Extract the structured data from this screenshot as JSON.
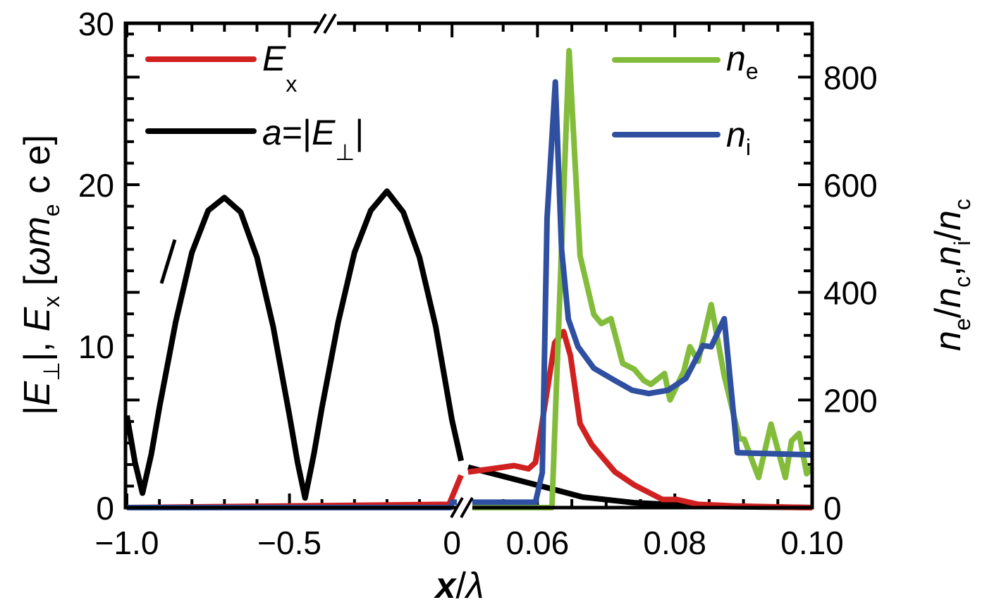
{
  "chart_data": {
    "type": "line",
    "xlabel": {
      "var": "x",
      "slash": "/",
      "lambda": "λ"
    },
    "ylabel_left": {
      "bar1": "|",
      "E": "E",
      "perp": "⊥",
      "bar2": "|, ",
      "E2": "E",
      "x": "x",
      "open": " [",
      "omega": "ω",
      "m": "m",
      "e": "e",
      "rest": " c e]"
    },
    "ylabel_right": {
      "n1": "n",
      "e": "e",
      "s1": "/",
      "n2": "n",
      "c1": "c",
      "comma": ",",
      "n3": "n",
      "i": "i",
      "s2": "/",
      "n4": "n",
      "c2": "c"
    },
    "x_axis": {
      "broken": true,
      "left_segment": [
        -1.0,
        0.03
      ],
      "right_segment": [
        0.05,
        0.1
      ],
      "tick_labels": [
        {
          "value": -1.0,
          "label": "−1.0"
        },
        {
          "value": -0.5,
          "label": "−0.5"
        },
        {
          "value": 0,
          "label": "0"
        },
        {
          "value": 0.06,
          "label": "0.06"
        },
        {
          "value": 0.08,
          "label": "0.08"
        },
        {
          "value": 0.1,
          "label": "0.10"
        }
      ]
    },
    "y_left": {
      "ylim": [
        0,
        30
      ],
      "tick_labels": [
        {
          "value": 0,
          "label": "0"
        },
        {
          "value": 10,
          "label": "10"
        },
        {
          "value": 20,
          "label": "20"
        },
        {
          "value": 30,
          "label": "30"
        }
      ]
    },
    "y_right": {
      "ylim": [
        0,
        900
      ],
      "tick_labels": [
        {
          "value": 0,
          "label": "0"
        },
        {
          "value": 200,
          "label": "200"
        },
        {
          "value": 400,
          "label": "400"
        },
        {
          "value": 600,
          "label": "600"
        },
        {
          "value": 800,
          "label": "800"
        }
      ]
    },
    "legend": [
      {
        "series": "Ex",
        "main": "E",
        "sub": "x",
        "placement": "top-left"
      },
      {
        "series": "a",
        "pre": "a",
        "mid": "=|",
        "main": "E",
        "sub": "⊥",
        "post": "|",
        "placement": "top-left"
      },
      {
        "series": "ne",
        "main": "n",
        "sub": "e",
        "placement": "top-right"
      },
      {
        "series": "ni",
        "main": "n",
        "sub": "i",
        "placement": "top-right"
      }
    ],
    "series": [
      {
        "name": "a",
        "axis": "left",
        "color": "#000000",
        "points": [
          [
            -1.0,
            5.7
          ],
          [
            -0.975,
            2.8
          ],
          [
            -0.952,
            0.9
          ],
          [
            -0.925,
            3.3
          ],
          [
            -0.9,
            6.2
          ],
          [
            -0.85,
            11.5
          ],
          [
            -0.8,
            15.8
          ],
          [
            -0.75,
            18.4
          ],
          [
            -0.7,
            19.2
          ],
          [
            -0.65,
            18.3
          ],
          [
            -0.6,
            15.5
          ],
          [
            -0.55,
            11.2
          ],
          [
            -0.5,
            5.7
          ],
          [
            -0.475,
            2.8
          ],
          [
            -0.452,
            0.6
          ],
          [
            -0.425,
            3.3
          ],
          [
            -0.4,
            6.2
          ],
          [
            -0.35,
            11.5
          ],
          [
            -0.3,
            15.8
          ],
          [
            -0.25,
            18.4
          ],
          [
            -0.2,
            19.6
          ],
          [
            -0.15,
            18.3
          ],
          [
            -0.1,
            15.5
          ],
          [
            -0.05,
            11.2
          ],
          [
            0.0,
            5.4
          ],
          [
            0.028,
            2.9
          ],
          [
            0.0499,
            2.5
          ],
          [
            0.0617,
            1.2
          ],
          [
            0.0666,
            0.65
          ],
          [
            0.0741,
            0.3
          ],
          [
            0.085,
            0.08
          ],
          [
            0.1,
            0.0
          ]
        ]
      },
      {
        "name": "Ex",
        "axis": "left",
        "color": "#d0201f",
        "points": [
          [
            -1.0,
            0
          ],
          [
            -0.009,
            0.2
          ],
          [
            0.028,
            2.0
          ],
          [
            0.0499,
            2.2
          ],
          [
            0.0566,
            2.6
          ],
          [
            0.0587,
            2.4
          ],
          [
            0.0597,
            2.8
          ],
          [
            0.0605,
            4.8
          ],
          [
            0.0625,
            10.2
          ],
          [
            0.0638,
            10.9
          ],
          [
            0.0648,
            9.4
          ],
          [
            0.0662,
            5.2
          ],
          [
            0.0679,
            3.9
          ],
          [
            0.0713,
            2.2
          ],
          [
            0.0741,
            1.4
          ],
          [
            0.0782,
            0.5
          ],
          [
            0.0803,
            0.5
          ],
          [
            0.0834,
            0.2
          ],
          [
            0.0886,
            0.1
          ],
          [
            0.1,
            0.0
          ]
        ]
      },
      {
        "name": "ne",
        "axis": "right",
        "color": "#82bc3a",
        "points": [
          [
            0.0499,
            0
          ],
          [
            0.0621,
            0
          ],
          [
            0.0635,
            481
          ],
          [
            0.0646,
            849
          ],
          [
            0.0662,
            468
          ],
          [
            0.0682,
            359
          ],
          [
            0.0693,
            342
          ],
          [
            0.0707,
            351
          ],
          [
            0.0724,
            268
          ],
          [
            0.0741,
            257
          ],
          [
            0.0755,
            236
          ],
          [
            0.0765,
            229
          ],
          [
            0.0785,
            249
          ],
          [
            0.0793,
            200
          ],
          [
            0.0813,
            253
          ],
          [
            0.0822,
            299
          ],
          [
            0.0834,
            272
          ],
          [
            0.0853,
            377
          ],
          [
            0.0872,
            245
          ],
          [
            0.0894,
            128
          ],
          [
            0.0901,
            127
          ],
          [
            0.0922,
            56
          ],
          [
            0.094,
            155
          ],
          [
            0.0961,
            56
          ],
          [
            0.097,
            124
          ],
          [
            0.0981,
            138
          ],
          [
            0.0992,
            63
          ],
          [
            0.1,
            76
          ]
        ]
      },
      {
        "name": "ni",
        "axis": "right",
        "color": "#2f4fa0",
        "points": [
          [
            -1.0,
            0
          ],
          [
            -0.005,
            0
          ],
          [
            0.0,
            10
          ],
          [
            0.028,
            10
          ],
          [
            0.0499,
            10
          ],
          [
            0.0597,
            10
          ],
          [
            0.0607,
            65
          ],
          [
            0.0614,
            538
          ],
          [
            0.0626,
            791
          ],
          [
            0.0635,
            481
          ],
          [
            0.0645,
            350
          ],
          [
            0.0659,
            299
          ],
          [
            0.0682,
            259
          ],
          [
            0.0713,
            236
          ],
          [
            0.0738,
            218
          ],
          [
            0.0762,
            212
          ],
          [
            0.079,
            218
          ],
          [
            0.0816,
            240
          ],
          [
            0.0841,
            301
          ],
          [
            0.0853,
            299
          ],
          [
            0.0872,
            351
          ],
          [
            0.0891,
            102
          ],
          [
            0.1,
            98
          ]
        ]
      }
    ]
  }
}
